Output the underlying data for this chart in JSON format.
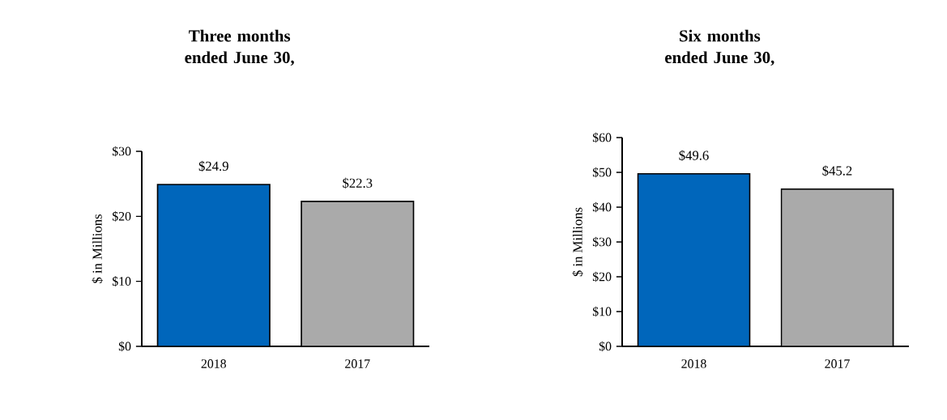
{
  "chart_data": [
    {
      "type": "bar",
      "title": "Three months ended June 30,",
      "ylabel": "$ in Millions",
      "categories": [
        "2018",
        "2017"
      ],
      "values": [
        24.9,
        22.3
      ],
      "colors": [
        "#0066bb",
        "#aaaaaa"
      ],
      "value_labels": [
        "$24.9",
        "$22.3"
      ],
      "ylim": [
        0,
        30
      ],
      "yticks": [
        {
          "value": 0,
          "label": "$0"
        },
        {
          "value": 10,
          "label": "$10"
        },
        {
          "value": 20,
          "label": "$20"
        },
        {
          "value": 30,
          "label": "$30"
        }
      ],
      "grid": false
    },
    {
      "type": "bar",
      "title": "Six months ended June 30,",
      "ylabel": "$ in Millions",
      "categories": [
        "2018",
        "2017"
      ],
      "values": [
        49.6,
        45.2
      ],
      "colors": [
        "#0066bb",
        "#aaaaaa"
      ],
      "value_labels": [
        "$49.6",
        "$45.2"
      ],
      "ylim": [
        0,
        60
      ],
      "yticks": [
        {
          "value": 0,
          "label": "$0"
        },
        {
          "value": 10,
          "label": "$10"
        },
        {
          "value": 20,
          "label": "$20"
        },
        {
          "value": 30,
          "label": "$30"
        },
        {
          "value": 40,
          "label": "$40"
        },
        {
          "value": 50,
          "label": "$50"
        },
        {
          "value": 60,
          "label": "$60"
        }
      ],
      "grid": false
    }
  ]
}
